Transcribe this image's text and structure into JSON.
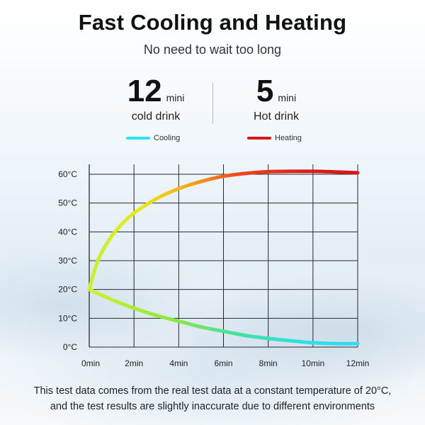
{
  "header": {
    "title": "Fast Cooling and Heating",
    "subtitle": "No need to wait too long"
  },
  "stats": [
    {
      "number": "12",
      "unit": "mini",
      "desc": "cold drink"
    },
    {
      "number": "5",
      "unit": "mini",
      "desc": "Hot drink"
    }
  ],
  "footnote": {
    "line1": "This test data comes from the real test data at a constant temperature of 20°C,",
    "line2": "and the test results are slightly inaccurate due to different environments"
  },
  "chart_data": {
    "type": "line",
    "x_unit": "min",
    "y_unit": "°C",
    "xlim": [
      0,
      12
    ],
    "ylim": [
      0,
      60
    ],
    "xticks": [
      0,
      2,
      4,
      6,
      8,
      10,
      12
    ],
    "xtick_labels": [
      "0min",
      "2min",
      "4min",
      "6min",
      "8min",
      "10min",
      "12min"
    ],
    "yticks": [
      0,
      10,
      20,
      30,
      40,
      50,
      60
    ],
    "ytick_labels": [
      "0°C",
      "10°C",
      "20°C",
      "30°C",
      "40°C",
      "50°C",
      "60°C"
    ],
    "grid": true,
    "legend_position": "top",
    "series": [
      {
        "name": "Cooling",
        "color": "#2fe0f0",
        "x": [
          0,
          1,
          2,
          3,
          4,
          5,
          6,
          7,
          8,
          9,
          10,
          11,
          12
        ],
        "y": [
          20,
          16.5,
          13.5,
          11,
          9,
          7,
          5.5,
          4,
          3,
          2.2,
          1.5,
          1.2,
          1.2
        ]
      },
      {
        "name": "Heating",
        "color": "#d9161c",
        "x": [
          0,
          0.25,
          0.5,
          1,
          1.5,
          2,
          3,
          4,
          5,
          6,
          7,
          8,
          9,
          10,
          11,
          12
        ],
        "y": [
          20,
          27,
          32,
          38.5,
          43,
          46.5,
          51.5,
          55,
          57.5,
          59.3,
          60.3,
          60.9,
          61,
          61,
          60.8,
          60.5
        ]
      }
    ]
  }
}
